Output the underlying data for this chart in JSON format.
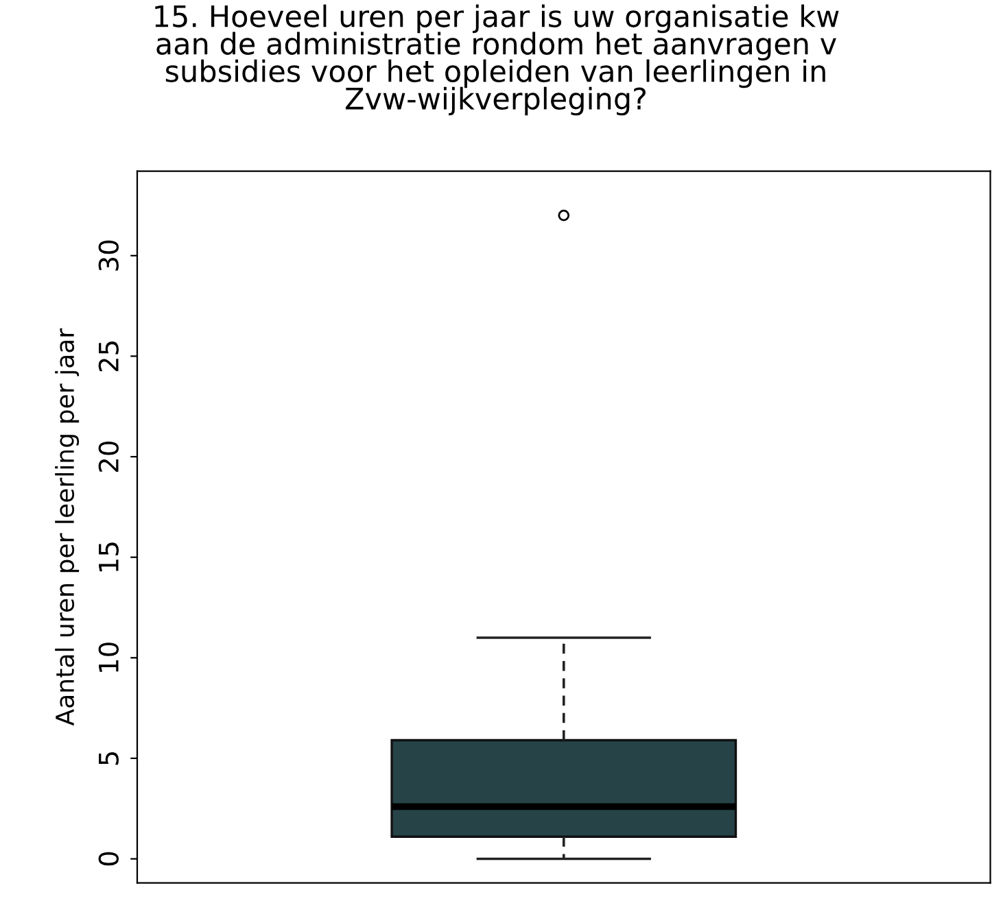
{
  "chart_data": {
    "type": "box",
    "title": "15. Hoeveel uren per jaar is uw organisatie kw\naan de administratie rondom het aanvragen v\nsubsidies voor het opleiden van leerlingen in\nZvw-wijkverpleging?",
    "ylabel": "Aantal uren per leerling per jaar",
    "categories": [
      null
    ],
    "color": "#264348",
    "boxes": [
      {
        "low": 0,
        "q1": 1.1,
        "median": 2.6,
        "q3": 5.9,
        "high": 11,
        "outliers": [
          32
        ]
      }
    ],
    "ylim": [
      -1.2,
      34.2
    ],
    "yticks": [
      0,
      5,
      10,
      15,
      20,
      25,
      30
    ],
    "tick_labels": "y",
    "grid": false
  }
}
